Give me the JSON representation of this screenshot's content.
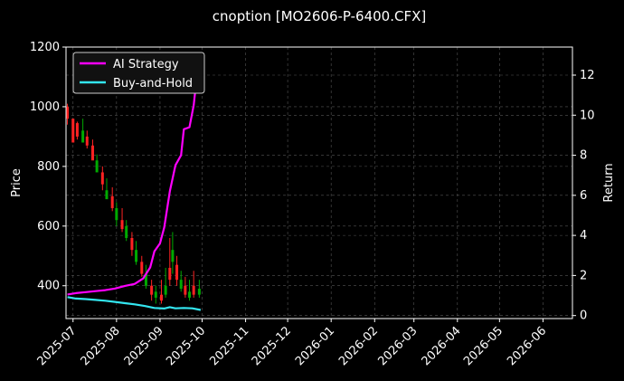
{
  "chart_data": {
    "type": "line",
    "title": "cnoption [MO2606-P-6400.CFX]",
    "ylabel": "Price",
    "ylabel_right": "Return",
    "x_ticks": [
      "2025-07",
      "2025-08",
      "2025-09",
      "2025-10",
      "2025-11",
      "2025-12",
      "2026-01",
      "2026-02",
      "2026-03",
      "2026-04",
      "2026-05",
      "2026-06"
    ],
    "x_range": [
      "2025-06-26",
      "2026-06-22"
    ],
    "ylim": [
      290,
      1200
    ],
    "y_ticks": [
      400,
      600,
      800,
      1000,
      1200
    ],
    "ylim_right": [
      -0.15,
      13.4
    ],
    "y_ticks_right": [
      0,
      2,
      4,
      6,
      8,
      10,
      12
    ],
    "grid": true,
    "legend_position": "top-left",
    "colors": {
      "up": "#00aa00",
      "down": "#ff2222",
      "ai": "#ff00ff",
      "bh": "#33e6f0",
      "grid": "#555555"
    },
    "series": [
      {
        "name": "AI Strategy",
        "axis": "right",
        "color": "#ff00ff",
        "points": [
          [
            "2025-06-27",
            1.05
          ],
          [
            "2025-07-03",
            1.12
          ],
          [
            "2025-07-10",
            1.17
          ],
          [
            "2025-07-17",
            1.22
          ],
          [
            "2025-07-24",
            1.27
          ],
          [
            "2025-07-31",
            1.35
          ],
          [
            "2025-08-07",
            1.48
          ],
          [
            "2025-08-14",
            1.58
          ],
          [
            "2025-08-20",
            1.85
          ],
          [
            "2025-08-25",
            2.4
          ],
          [
            "2025-08-28",
            3.2
          ],
          [
            "2025-09-01",
            3.6
          ],
          [
            "2025-09-04",
            4.4
          ],
          [
            "2025-09-08",
            6.2
          ],
          [
            "2025-09-12",
            7.5
          ],
          [
            "2025-09-16",
            8.0
          ],
          [
            "2025-09-18",
            9.3
          ],
          [
            "2025-09-22",
            9.4
          ],
          [
            "2025-09-25",
            10.5
          ],
          [
            "2025-09-27",
            11.8
          ],
          [
            "2025-09-29",
            12.6
          ],
          [
            "2025-09-30",
            12.2
          ]
        ]
      },
      {
        "name": "Buy-and-Hold",
        "axis": "right",
        "color": "#33e6f0",
        "points": [
          [
            "2025-06-27",
            0.92
          ],
          [
            "2025-07-03",
            0.85
          ],
          [
            "2025-07-10",
            0.82
          ],
          [
            "2025-07-17",
            0.78
          ],
          [
            "2025-07-24",
            0.74
          ],
          [
            "2025-07-31",
            0.68
          ],
          [
            "2025-08-07",
            0.62
          ],
          [
            "2025-08-14",
            0.56
          ],
          [
            "2025-08-21",
            0.48
          ],
          [
            "2025-08-28",
            0.38
          ],
          [
            "2025-09-04",
            0.35
          ],
          [
            "2025-09-08",
            0.42
          ],
          [
            "2025-09-12",
            0.36
          ],
          [
            "2025-09-18",
            0.38
          ],
          [
            "2025-09-24",
            0.36
          ],
          [
            "2025-09-30",
            0.28
          ]
        ]
      }
    ],
    "candles": [
      [
        "2025-06-27",
        1000,
        1010,
        960,
        940,
        "down"
      ],
      [
        "2025-07-01",
        960,
        955,
        880,
        920,
        "down"
      ],
      [
        "2025-07-04",
        945,
        950,
        900,
        890,
        "down"
      ],
      [
        "2025-07-08",
        920,
        960,
        880,
        910,
        "up"
      ],
      [
        "2025-07-11",
        900,
        920,
        870,
        860,
        "down"
      ],
      [
        "2025-07-15",
        870,
        890,
        820,
        840,
        "down"
      ],
      [
        "2025-07-18",
        820,
        840,
        780,
        800,
        "up"
      ],
      [
        "2025-07-22",
        780,
        800,
        740,
        720,
        "down"
      ],
      [
        "2025-07-25",
        720,
        760,
        690,
        700,
        "up"
      ],
      [
        "2025-07-29",
        700,
        730,
        660,
        650,
        "down"
      ],
      [
        "2025-08-01",
        660,
        680,
        620,
        600,
        "up"
      ],
      [
        "2025-08-05",
        620,
        660,
        590,
        580,
        "down"
      ],
      [
        "2025-08-08",
        600,
        620,
        560,
        550,
        "up"
      ],
      [
        "2025-08-12",
        560,
        580,
        520,
        500,
        "down"
      ],
      [
        "2025-08-15",
        520,
        550,
        480,
        470,
        "up"
      ],
      [
        "2025-08-19",
        480,
        500,
        440,
        430,
        "down"
      ],
      [
        "2025-08-22",
        440,
        470,
        400,
        390,
        "up"
      ],
      [
        "2025-08-26",
        400,
        420,
        370,
        350,
        "down"
      ],
      [
        "2025-08-29",
        380,
        400,
        360,
        340,
        "up"
      ],
      [
        "2025-09-02",
        370,
        420,
        350,
        340,
        "down"
      ],
      [
        "2025-09-05",
        400,
        460,
        370,
        360,
        "up"
      ],
      [
        "2025-09-08",
        460,
        560,
        420,
        400,
        "down"
      ],
      [
        "2025-09-10",
        520,
        580,
        480,
        440,
        "up"
      ],
      [
        "2025-09-13",
        470,
        500,
        420,
        400,
        "down"
      ],
      [
        "2025-09-16",
        420,
        450,
        390,
        380,
        "up"
      ],
      [
        "2025-09-19",
        400,
        430,
        370,
        360,
        "down"
      ],
      [
        "2025-09-22",
        380,
        420,
        360,
        350,
        "up"
      ],
      [
        "2025-09-25",
        400,
        450,
        370,
        360,
        "down"
      ],
      [
        "2025-09-29",
        390,
        420,
        370,
        360,
        "up"
      ]
    ]
  }
}
